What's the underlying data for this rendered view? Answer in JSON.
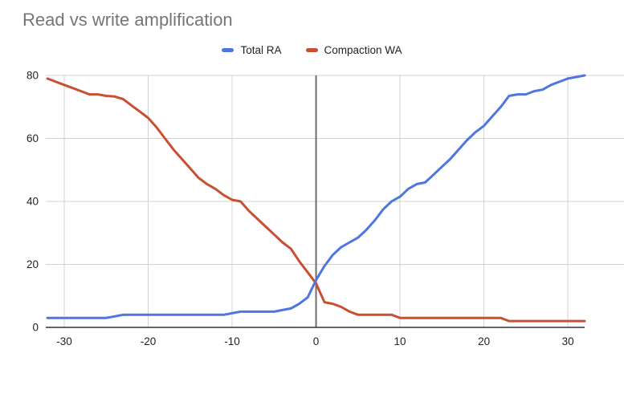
{
  "title": "Read vs write amplification",
  "styles": {
    "background": "#ffffff",
    "title_color": "#757575",
    "grid_color": "#d2d2d2",
    "zero_line_color": "#6e6e6e",
    "axis_line_color": "#333333",
    "tick_label_color": "#222222"
  },
  "chart_data": {
    "type": "line",
    "title": "Read vs write amplification",
    "xlabel": "",
    "ylabel": "",
    "legend_position": "top",
    "grid": true,
    "xlim": [
      -32.2,
      32
    ],
    "ylim": [
      0,
      80
    ],
    "xticks": [
      -30,
      -20,
      -10,
      0,
      10,
      20,
      30
    ],
    "yticks": [
      0,
      20,
      40,
      60,
      80
    ],
    "x": [
      -32,
      -31,
      -30,
      -29,
      -28,
      -27,
      -26,
      -25,
      -24,
      -23,
      -22,
      -21,
      -20,
      -19,
      -18,
      -17,
      -16,
      -15,
      -14,
      -13,
      -12,
      -11,
      -10,
      -9,
      -8,
      -7,
      -6,
      -5,
      -4,
      -3,
      -2,
      -1,
      0,
      1,
      2,
      3,
      4,
      5,
      6,
      7,
      8,
      9,
      10,
      11,
      12,
      13,
      14,
      15,
      16,
      17,
      18,
      19,
      20,
      21,
      22,
      23,
      24,
      25,
      26,
      27,
      28,
      29,
      30,
      31,
      32
    ],
    "series": [
      {
        "name": "Total RA",
        "color": "#4f75e0",
        "values": [
          3,
          3,
          3,
          3,
          3,
          3,
          3,
          3,
          3.5,
          4,
          4,
          4,
          4,
          4,
          4,
          4,
          4,
          4,
          4,
          4,
          4,
          4,
          4.5,
          5,
          5,
          5,
          5,
          5,
          5.5,
          6,
          7.5,
          9.5,
          15,
          19.5,
          23,
          25.5,
          27,
          28.5,
          31,
          34,
          37.5,
          40,
          41.5,
          44,
          45.5,
          46,
          48.5,
          51,
          53.5,
          56.5,
          59.5,
          62,
          64,
          67,
          70,
          73.5,
          74,
          74,
          75,
          75.5,
          77,
          78,
          79,
          79.5,
          80
        ]
      },
      {
        "name": "Compaction WA",
        "color": "#c94f33",
        "values": [
          79,
          78,
          77,
          76,
          75,
          74,
          74,
          73.5,
          73.3,
          72.5,
          70.5,
          68.5,
          66.5,
          63.5,
          60,
          56.5,
          53.5,
          50.5,
          47.5,
          45.5,
          44,
          42,
          40.5,
          40,
          37,
          34.5,
          32,
          29.5,
          27,
          25,
          21,
          17.5,
          14,
          8,
          7.5,
          6.5,
          5,
          4,
          4,
          4,
          4,
          4,
          3,
          3,
          3,
          3,
          3,
          3,
          3,
          3,
          3,
          3,
          3,
          3,
          3,
          2,
          2,
          2,
          2,
          2,
          2,
          2,
          2,
          2,
          2
        ]
      }
    ]
  }
}
